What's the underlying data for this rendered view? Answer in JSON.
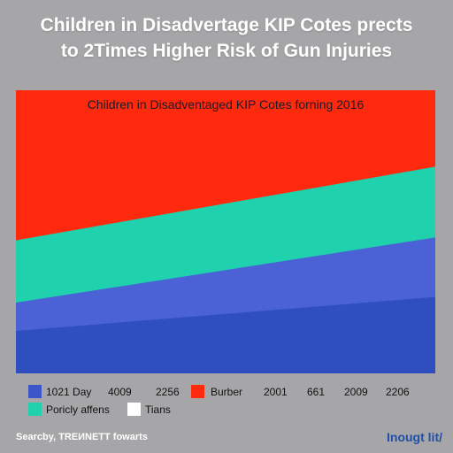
{
  "header": {
    "title_line1": "Children in Disadvertage KIP Cotes prects",
    "title_line2": "to 2Times Higher Risk of Gun Injuries"
  },
  "chart_data": {
    "type": "area",
    "title": "Children in Disadventaged KIP Cotes forning 2016",
    "series": [
      {
        "color": "#2f4fbf",
        "values": [
          0.15,
          0.27
        ]
      },
      {
        "color": "#4a62d6",
        "values": [
          0.25,
          0.48
        ]
      },
      {
        "color": "#1fd1ad",
        "values": [
          0.47,
          0.73
        ]
      },
      {
        "color": "#ff2a0e",
        "values": [
          1.0,
          1.0
        ]
      }
    ]
  },
  "legend": {
    "row1": [
      {
        "color": "#3c55c9",
        "label": "1021 Day"
      },
      {
        "label": "4009"
      },
      {
        "label": "2256"
      },
      {
        "color": "#ff2a0e",
        "label": "Burber"
      },
      {
        "label": "2001"
      },
      {
        "label": "661"
      },
      {
        "label": "2009"
      },
      {
        "label": "2206"
      }
    ],
    "row2": [
      {
        "color": "#1fd1ad",
        "label": "Poricly affens"
      },
      {
        "color": "#ffffff",
        "label": "Tians"
      }
    ]
  },
  "footer": {
    "source": "Searcby, TREИNETT fowarts",
    "brand": "Inougt lit/"
  }
}
